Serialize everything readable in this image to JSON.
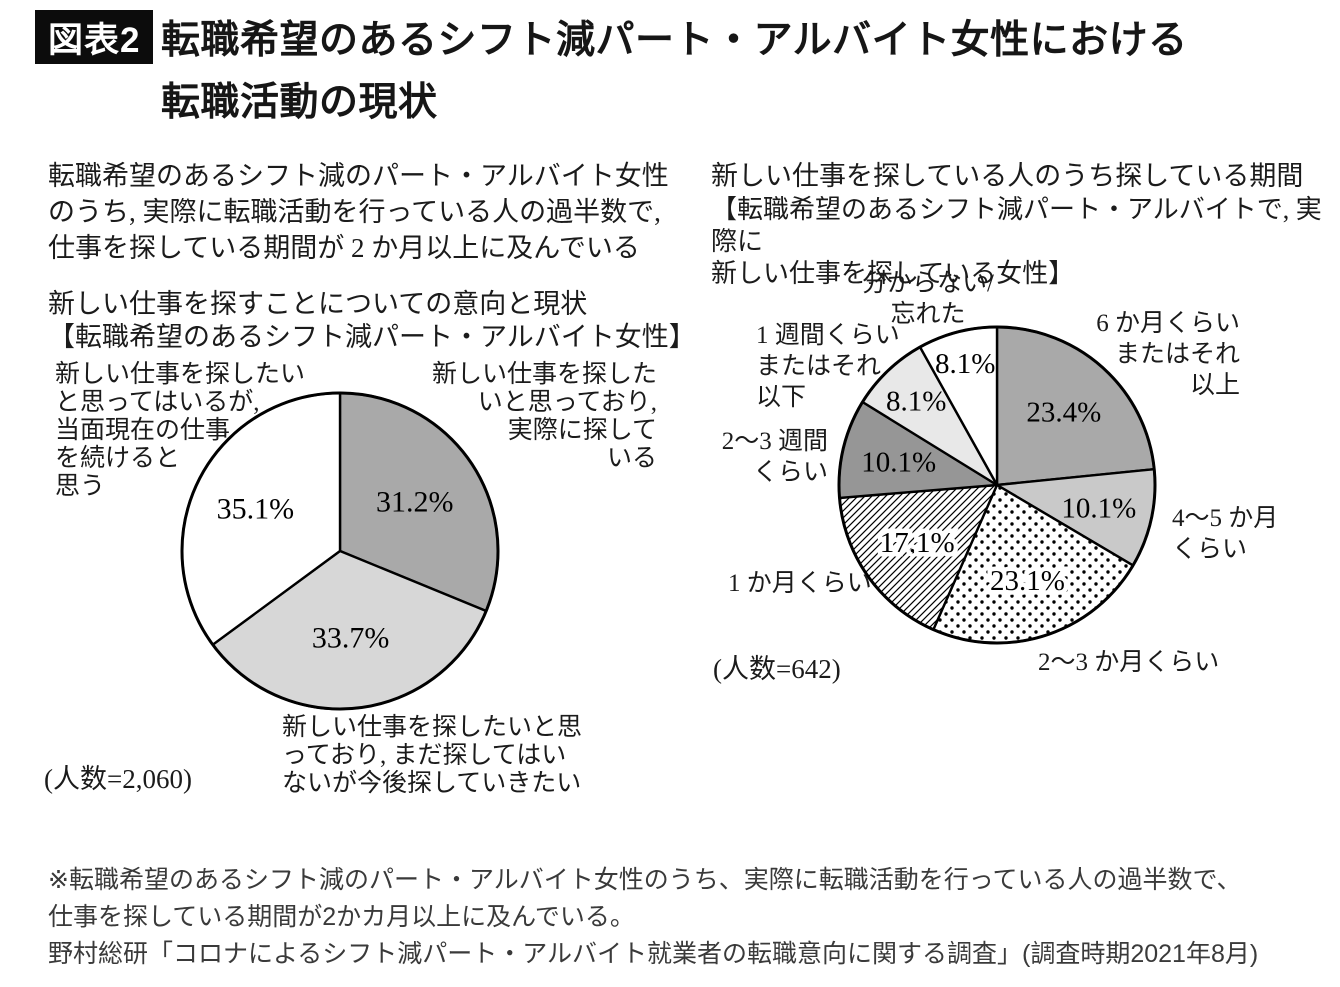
{
  "page": {
    "badge": "図表2",
    "title": "転職希望のあるシフト減パート・アルバイト女性における\n転職活動の現状"
  },
  "intro": "転職希望のあるシフト減のパート・アルバイト女性\nのうち, 実際に転職活動を行っている人の過半数で,\n仕事を探している期間が 2 か月以上に及んでいる",
  "footnote": "※転職希望のあるシフト減のパート・アルバイト女性のうち、実際に転職活動を行っている人の過半数で、\n仕事を探している期間が2かカ月以上に及んでいる。\n野村総研「コロナによるシフト減パート・アルバイト就業者の転職意向に関する調査」(調査時期2021年8月)",
  "chart_data": [
    {
      "type": "pie",
      "title": "新しい仕事を探すことについての意向と現状",
      "subtitle": "【転職希望のあるシフト減パート・アルバイト女性】",
      "n_label": "(人数=2,060)",
      "n_value": 2060,
      "start_angle": "top",
      "direction": "clockwise",
      "outline_color": "#000000",
      "slices": [
        {
          "label": "新しい仕事を探した\nいと思っており,\n実際に探して\nいる",
          "value": 31.2,
          "fill": "#a9a9a9",
          "label_r": 0.57
        },
        {
          "label": "新しい仕事を探したいと思\nっており, まだ探してはい\nないが今後探していきたい",
          "value": 33.7,
          "fill": "#d7d7d7",
          "label_r": 0.55
        },
        {
          "label": "新しい仕事を探したい\nと思ってはいるが,\n当面現在の仕事\nを続けると\n思う",
          "value": 35.1,
          "fill": "#ffffff",
          "label_r": 0.6
        }
      ]
    },
    {
      "type": "pie",
      "title": "新しい仕事を探している人のうち探している期間",
      "subtitle": "【転職希望のあるシフト減パート・アルバイトで, 実際に\n新しい仕事を探している女性】",
      "n_label": "(人数=642)",
      "n_value": 642,
      "start_angle": "top",
      "direction": "clockwise",
      "outline_color": "#000000",
      "slices": [
        {
          "label": "6 か月くらい\nまたはそれ\n以上",
          "value": 23.4,
          "fill": "#a9a9a9",
          "label_r": 0.63
        },
        {
          "label": "4〜5 か月\nくらい",
          "value": 10.1,
          "fill": "#c9c9c9",
          "label_r": 0.66
        },
        {
          "label": "2〜3 か月くらい",
          "value": 23.1,
          "fill": "dots",
          "label_r": 0.63
        },
        {
          "label": "1 か月くらい",
          "value": 17.1,
          "fill": "hatch",
          "label_r": 0.62
        },
        {
          "label": "2〜3 週間\nくらい",
          "value": 10.1,
          "fill": "#969696",
          "label_r": 0.64
        },
        {
          "label": "1 週間くらい\nまたはそれ\n以下",
          "value": 8.1,
          "fill": "#e8e8e8",
          "label_r": 0.74
        },
        {
          "label": "分からない/\n忘れた",
          "value": 8.1,
          "fill": "#ffffff",
          "label_r": 0.8
        }
      ]
    }
  ]
}
